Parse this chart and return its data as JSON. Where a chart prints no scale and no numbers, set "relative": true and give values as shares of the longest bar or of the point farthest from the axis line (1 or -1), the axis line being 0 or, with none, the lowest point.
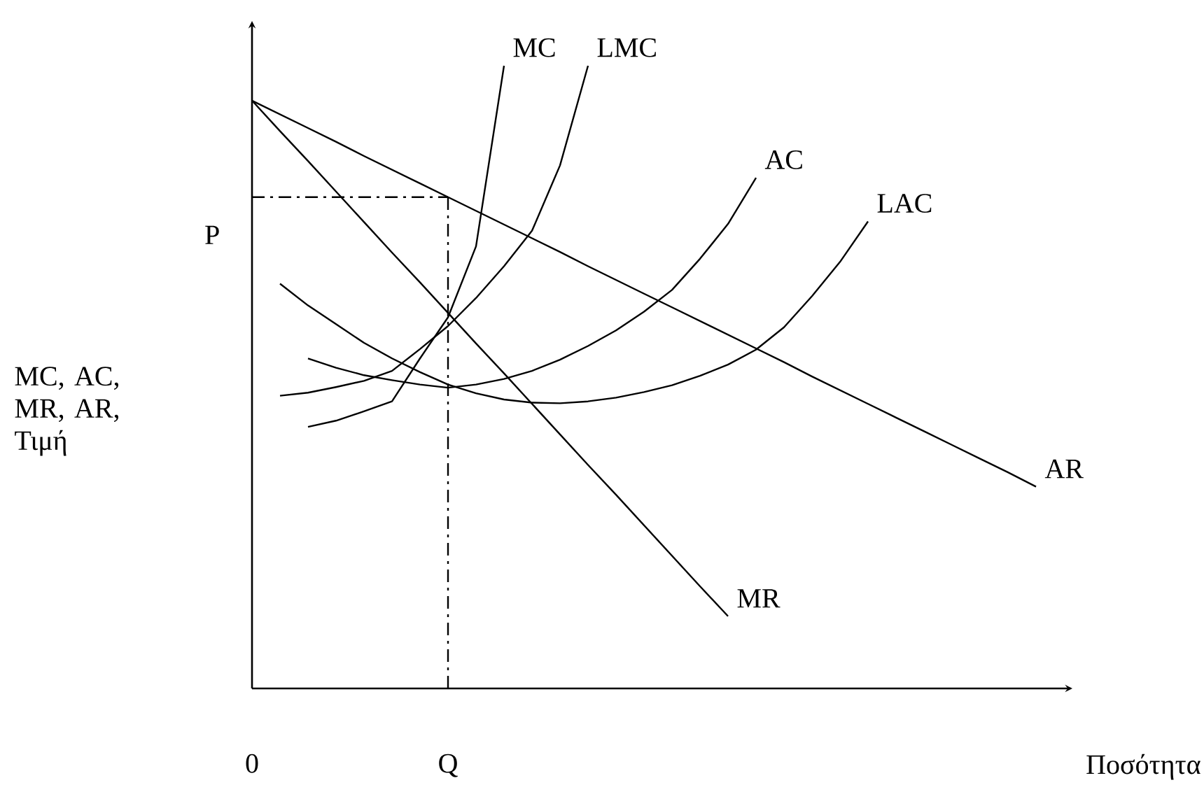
{
  "chart_data": {
    "type": "line",
    "relative": true,
    "xlabel": "Ποσότητα",
    "ylabel": "MC, AC, MR, AR, Τιμή",
    "categories": [
      "0",
      null,
      null,
      null,
      null,
      null,
      null,
      "Q",
      null,
      null,
      null,
      null,
      null,
      null,
      null,
      null,
      null,
      null,
      null,
      null,
      null,
      null,
      null,
      null,
      null,
      null,
      null,
      null,
      null,
      null
    ],
    "series": [
      {
        "name": "MC",
        "color": "#000000",
        "values": [
          null,
          null,
          0.42,
          0.43,
          0.445,
          0.461,
          0.53,
          0.596,
          0.71,
          1.0,
          null,
          null,
          null,
          null,
          null,
          null,
          null,
          null,
          null,
          null,
          null,
          null,
          null,
          null,
          null,
          null,
          null,
          null,
          null,
          null
        ]
      },
      {
        "name": "LMC",
        "color": "#000000",
        "values": [
          null,
          0.47,
          0.475,
          0.484,
          0.494,
          0.51,
          0.545,
          0.582,
          0.627,
          0.678,
          0.735,
          0.84,
          1.0,
          null,
          null,
          null,
          null,
          null,
          null,
          null,
          null,
          null,
          null,
          null,
          null,
          null,
          null,
          null,
          null,
          null
        ]
      },
      {
        "name": "AC",
        "color": "#000000",
        "values": [
          null,
          null,
          0.53,
          0.515,
          0.503,
          0.495,
          0.488,
          0.483,
          0.488,
          0.497,
          0.51,
          0.528,
          0.55,
          0.575,
          0.605,
          0.64,
          0.69,
          0.746,
          0.82,
          null,
          null,
          null,
          null,
          null,
          null,
          null,
          null,
          null,
          null,
          null
        ]
      },
      {
        "name": "LAC",
        "color": "#000000",
        "values": [
          null,
          0.65,
          0.615,
          0.585,
          0.555,
          0.53,
          0.508,
          0.488,
          0.474,
          0.464,
          0.459,
          0.458,
          0.461,
          0.467,
          0.476,
          0.487,
          0.502,
          0.52,
          0.544,
          0.58,
          0.63,
          0.685,
          0.75,
          null,
          null,
          null,
          null,
          null,
          null,
          null
        ]
      },
      {
        "name": "AR",
        "color": "#000000",
        "values": [
          0.944,
          0.922,
          0.9,
          0.878,
          0.855,
          0.833,
          0.811,
          0.789,
          0.767,
          0.745,
          0.723,
          0.701,
          0.678,
          0.656,
          0.634,
          0.612,
          0.59,
          0.568,
          0.546,
          0.524,
          0.501,
          0.479,
          0.457,
          0.435,
          0.413,
          0.391,
          0.369,
          0.347,
          0.324,
          null
        ]
      },
      {
        "name": "MR",
        "color": "#000000",
        "values": [
          0.944,
          0.895,
          0.847,
          0.798,
          0.749,
          0.7,
          0.652,
          0.603,
          0.554,
          0.506,
          0.457,
          0.408,
          0.359,
          0.311,
          0.262,
          0.213,
          0.164,
          0.116,
          null,
          null,
          null,
          null,
          null,
          null,
          null,
          null,
          null,
          null,
          null,
          null
        ]
      }
    ],
    "ref_lines": [
      {
        "axis": "x",
        "value": "Q",
        "line_style": "dashed"
      },
      {
        "axis": "y",
        "value": 0.789,
        "label": "P",
        "line_style": "dashed"
      }
    ]
  }
}
